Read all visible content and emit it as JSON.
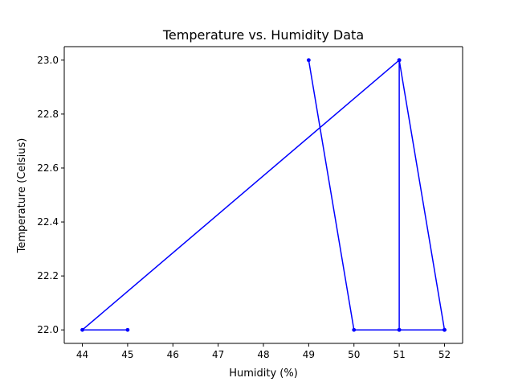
{
  "chart_data": {
    "type": "line",
    "title": "Temperature vs. Humidity Data",
    "xlabel": "Humidity (%)",
    "ylabel": "Temperature (Celsius)",
    "xlim": [
      43.6,
      52.4
    ],
    "ylim": [
      21.95,
      23.05
    ],
    "x_ticks": [
      44,
      45,
      46,
      47,
      48,
      49,
      50,
      51,
      52
    ],
    "x_tick_labels": [
      "44",
      "45",
      "46",
      "47",
      "48",
      "49",
      "50",
      "51",
      "52"
    ],
    "y_ticks": [
      22.0,
      22.2,
      22.4,
      22.6,
      22.8,
      23.0
    ],
    "y_tick_labels": [
      "22.0",
      "22.2",
      "22.4",
      "22.6",
      "22.8",
      "23.0"
    ],
    "grid": false,
    "legend": "none",
    "series": [
      {
        "color": "#0000ff",
        "marker": "point",
        "points": [
          {
            "x": 45,
            "y": 22.0
          },
          {
            "x": 44,
            "y": 22.0
          },
          {
            "x": 51,
            "y": 23.0
          },
          {
            "x": 52,
            "y": 22.0
          },
          {
            "x": 51,
            "y": 22.0
          },
          {
            "x": 51,
            "y": 23.0
          },
          {
            "x": 52,
            "y": 22.0
          },
          {
            "x": 51,
            "y": 22.0
          },
          {
            "x": 50,
            "y": 22.0
          },
          {
            "x": 49,
            "y": 23.0
          }
        ]
      }
    ]
  }
}
